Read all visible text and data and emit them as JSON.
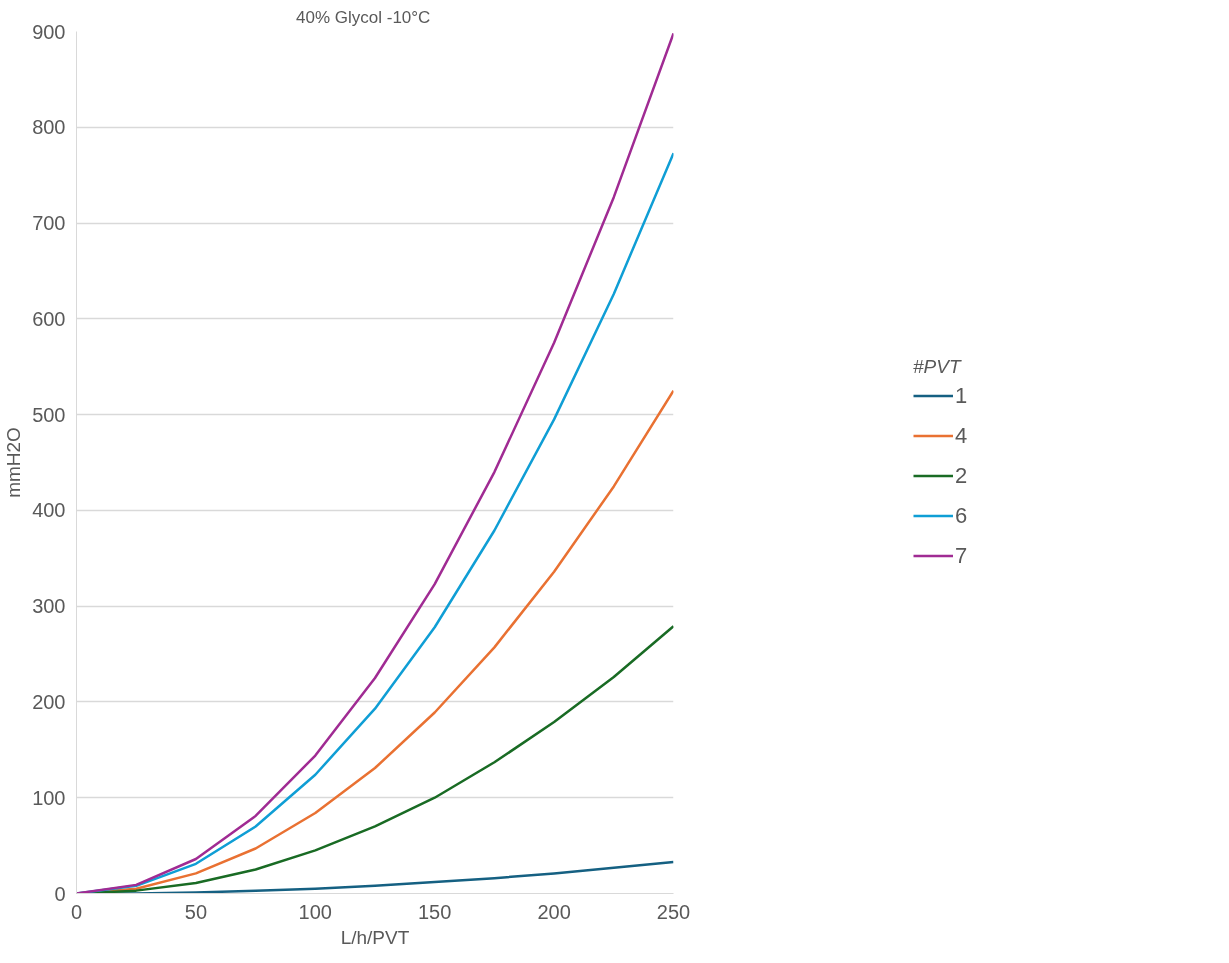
{
  "chart_data": {
    "type": "line",
    "title": "40% Glycol      -10°C",
    "xlabel": "L/h/PVT",
    "ylabel": "mmH2O",
    "legend_title": "#PVT",
    "x": [
      0,
      25,
      50,
      75,
      100,
      125,
      150,
      175,
      200,
      225,
      250
    ],
    "series": [
      {
        "name": "1",
        "color": "#156082",
        "values": [
          0,
          0,
          1,
          3,
          5,
          8,
          12,
          16,
          21,
          27,
          33
        ]
      },
      {
        "name": "4",
        "color": "#e97132",
        "values": [
          0,
          5,
          21,
          47,
          84,
          131,
          189,
          257,
          336,
          425,
          525
        ]
      },
      {
        "name": "2",
        "color": "#196b24",
        "values": [
          0,
          3,
          11,
          25,
          45,
          70,
          100,
          137,
          179,
          226,
          279
        ]
      },
      {
        "name": "6",
        "color": "#0f9ed5",
        "values": [
          0,
          8,
          31,
          70,
          124,
          193,
          278,
          379,
          495,
          626,
          773
        ]
      },
      {
        "name": "7",
        "color": "#a02b93",
        "values": [
          0,
          9,
          36,
          81,
          144,
          225,
          323,
          440,
          575,
          727,
          898
        ]
      }
    ],
    "xlim": [
      0,
      250
    ],
    "xticks": [
      0,
      50,
      100,
      150,
      200,
      250
    ],
    "ylim": [
      0,
      900
    ],
    "yticks": [
      0,
      100,
      200,
      300,
      400,
      500,
      600,
      700,
      800,
      900
    ],
    "grid": "y",
    "legend": "right",
    "marker": "none",
    "line_style": "solid"
  }
}
